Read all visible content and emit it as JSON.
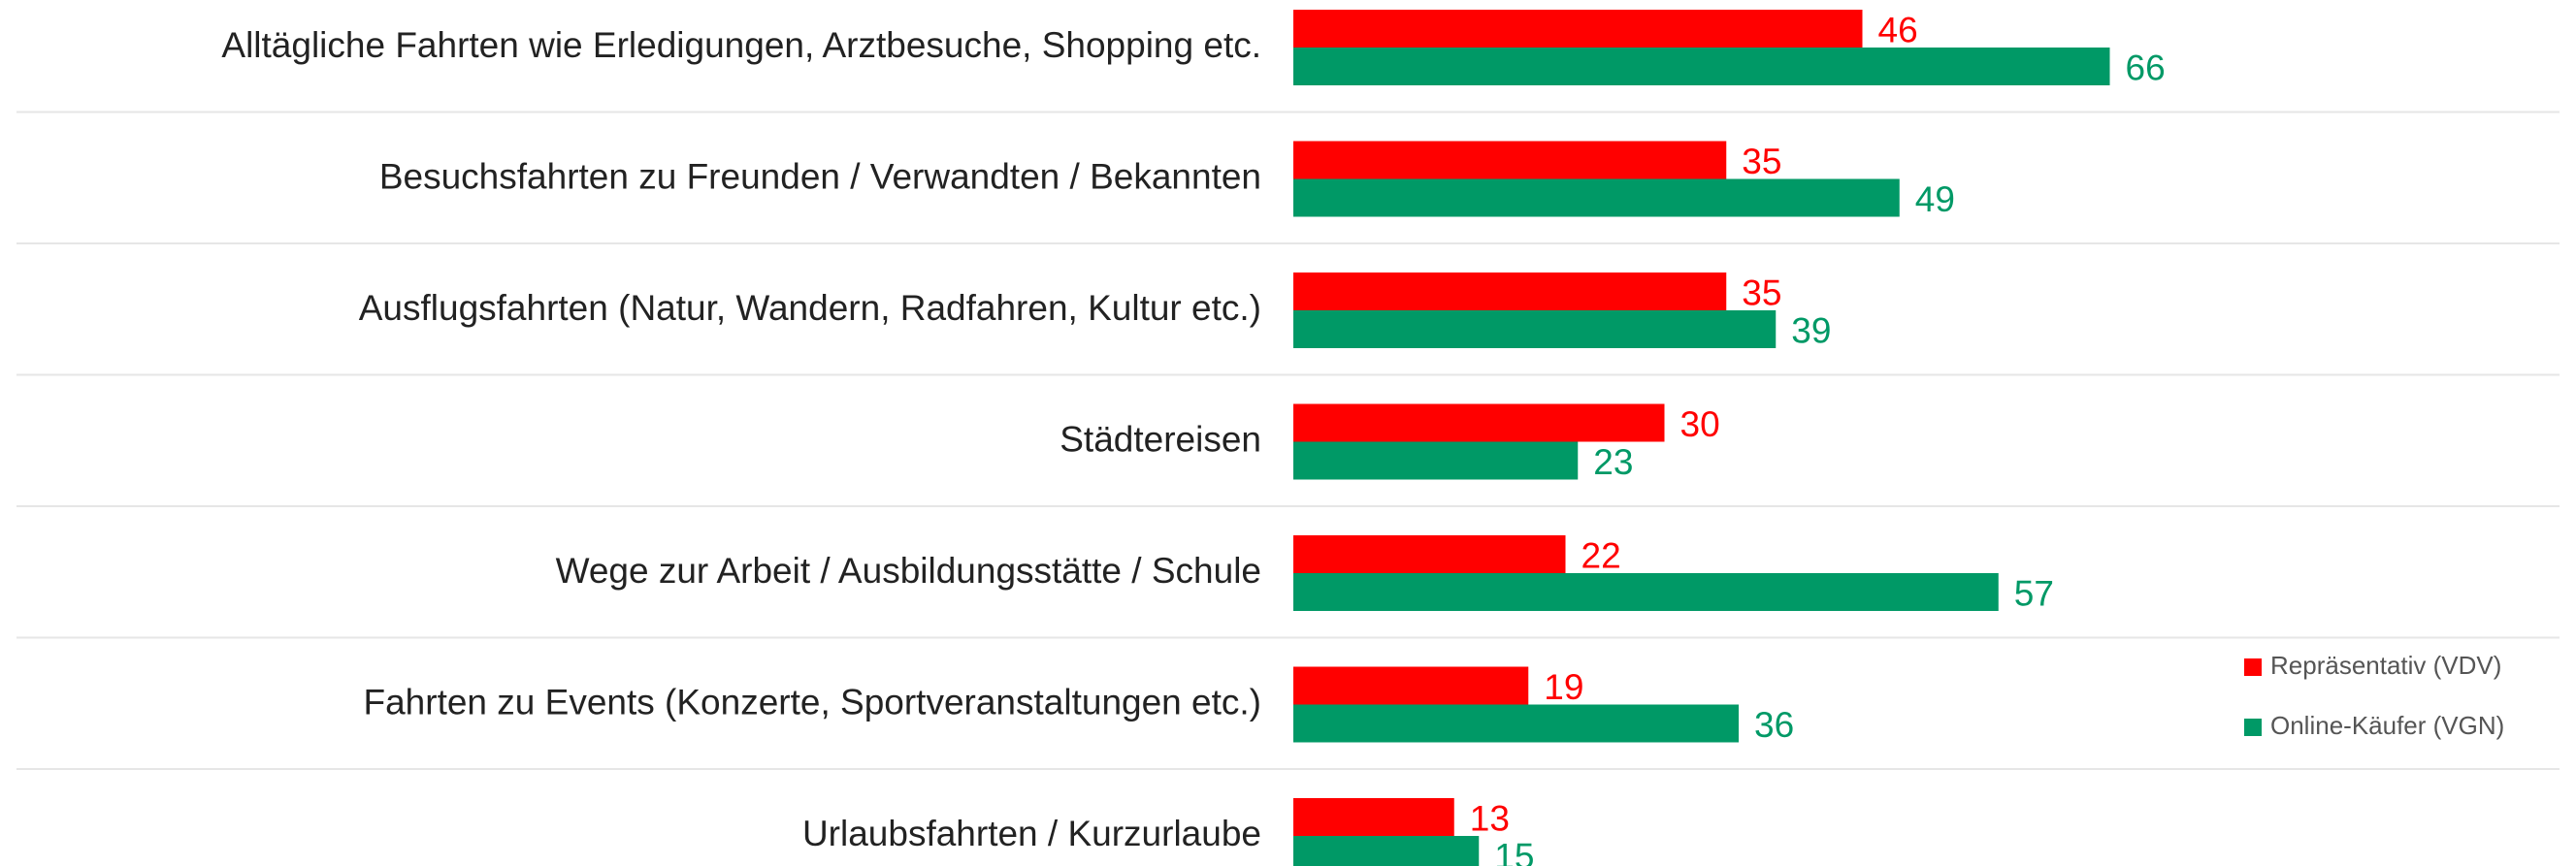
{
  "chart_data": {
    "type": "bar",
    "orientation": "horizontal",
    "categories": [
      "Alltägliche Fahrten wie Erledigungen, Arztbesuche, Shopping etc.",
      "Besuchsfahrten zu Freunden / Verwandten / Bekannten",
      "Ausflugsfahrten (Natur, Wandern, Radfahren, Kultur etc.)",
      "Städtereisen",
      "Wege zur Arbeit / Ausbildungsstätte / Schule",
      "Fahrten zu Events (Konzerte, Sportveranstaltungen etc.)",
      "Urlaubsfahrten / Kurzurlaube"
    ],
    "series": [
      {
        "name": "Repräsentativ (VDV)",
        "color": "#ff0000",
        "values": [
          46,
          35,
          35,
          30,
          22,
          19,
          13
        ]
      },
      {
        "name": "Online-Käufer (VGN)",
        "color": "#009966",
        "values": [
          66,
          49,
          39,
          23,
          57,
          36,
          15
        ]
      }
    ],
    "legend": "right"
  }
}
